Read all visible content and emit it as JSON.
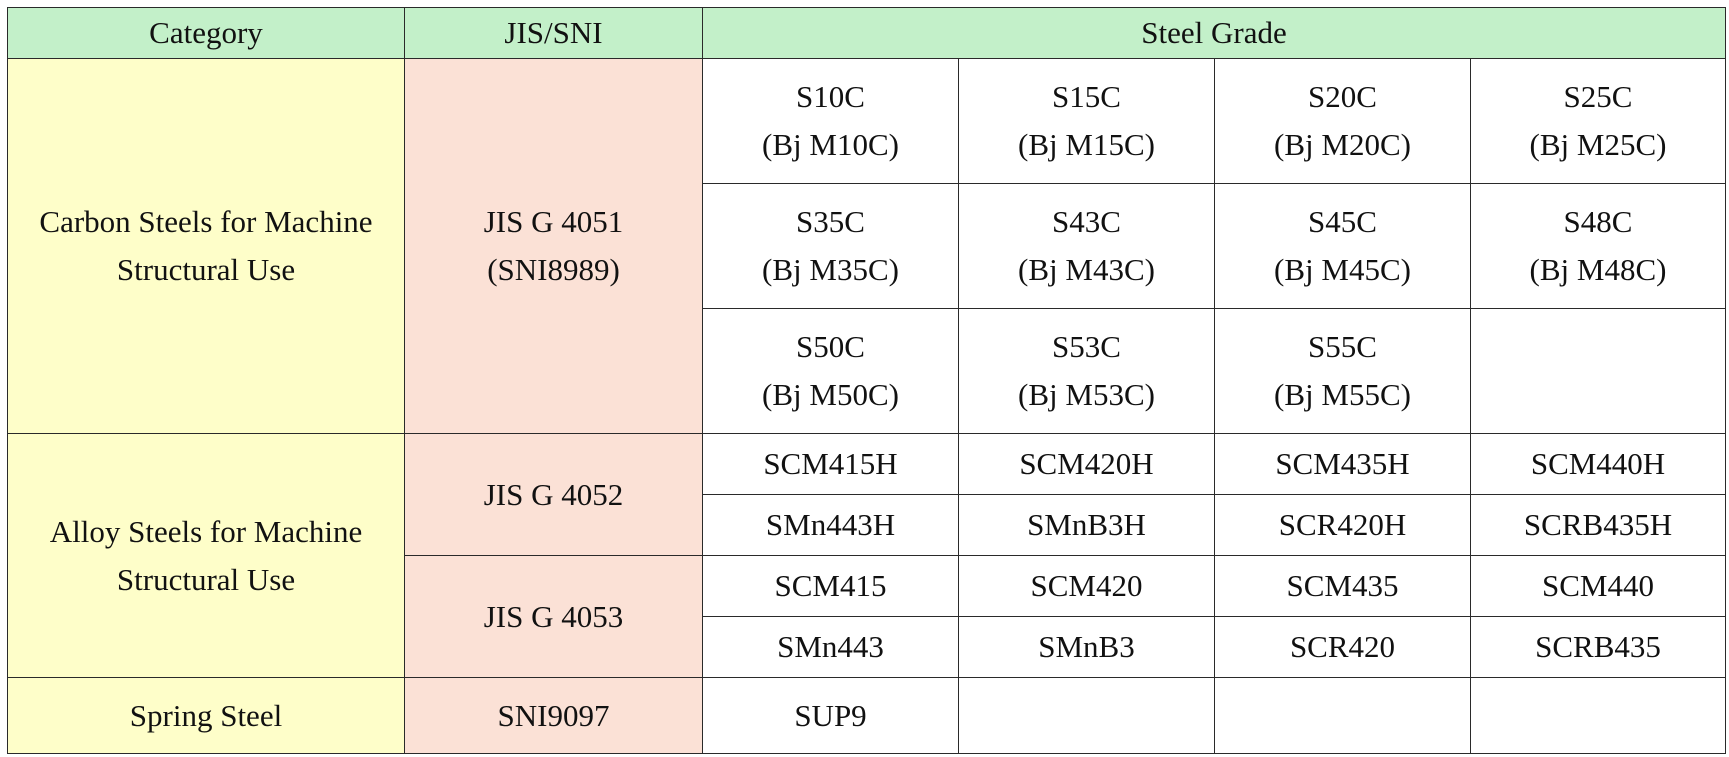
{
  "table": {
    "header": [
      "Category",
      "JIS/SNI",
      "Steel Grade"
    ],
    "groups": [
      {
        "category": "Carbon Steels for Machine Structural Use",
        "standards": [
          {
            "name": "JIS G 4051",
            "note": "(SNI8989)",
            "rows": [
              [
                {
                  "grade": "S10C",
                  "equivalent": "(Bj M10C)"
                },
                {
                  "grade": "S15C",
                  "equivalent": "(Bj M15C)"
                },
                {
                  "grade": "S20C",
                  "equivalent": "(Bj M20C)"
                },
                {
                  "grade": "S25C",
                  "equivalent": "(Bj M25C)"
                }
              ],
              [
                {
                  "grade": "S35C",
                  "equivalent": "(Bj M35C)"
                },
                {
                  "grade": "S43C",
                  "equivalent": "(Bj M43C)"
                },
                {
                  "grade": "S45C",
                  "equivalent": "(Bj M45C)"
                },
                {
                  "grade": "S48C",
                  "equivalent": "(Bj M48C)"
                }
              ],
              [
                {
                  "grade": "S50C",
                  "equivalent": "(Bj M50C)"
                },
                {
                  "grade": "S53C",
                  "equivalent": "(Bj M53C)"
                },
                {
                  "grade": "S55C",
                  "equivalent": "(Bj M55C)"
                }
              ]
            ]
          }
        ]
      },
      {
        "category": "Alloy Steels for Machine Structural Use",
        "standards": [
          {
            "name": "JIS G 4052",
            "rows": [
              [
                "SCM415H",
                "SCM420H",
                "SCM435H",
                "SCM440H"
              ],
              [
                "SMn443H",
                "SMnB3H",
                "SCR420H",
                "SCRB435H"
              ]
            ]
          },
          {
            "name": "JIS G 4053",
            "rows": [
              [
                "SCM415",
                "SCM420",
                "SCM435",
                "SCM440"
              ],
              [
                "SMn443",
                "SMnB3",
                "SCR420",
                "SCRB435"
              ]
            ]
          }
        ]
      },
      {
        "category": "Spring Steel",
        "standards": [
          {
            "name": "SNI9097",
            "rows": [
              [
                "SUP9"
              ]
            ]
          }
        ]
      }
    ]
  }
}
